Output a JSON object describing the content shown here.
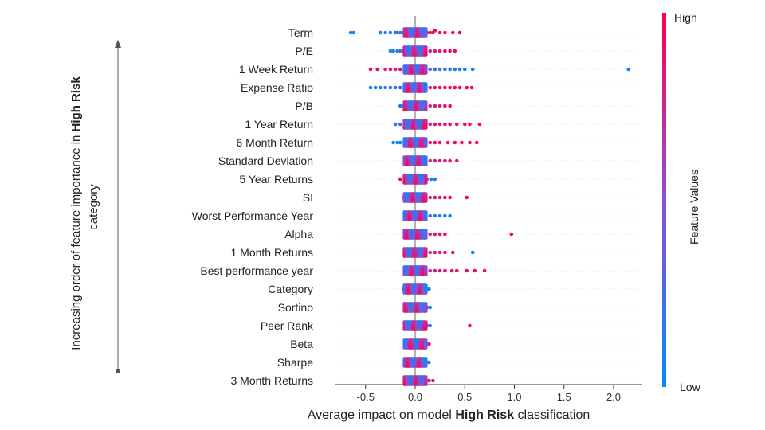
{
  "chart_data": {
    "type": "scatter",
    "subtype": "shap-beeswarm",
    "title": "",
    "xlabel_prefix": "Average impact on model ",
    "xlabel_bold": "High Risk",
    "xlabel_suffix": " classification",
    "ylabel_line1_prefix": "Increasing order of feature importance in ",
    "ylabel_line1_bold": "High Risk",
    "ylabel_line2": "category",
    "xlim": [
      -0.78,
      2.28
    ],
    "xticks": [
      -0.5,
      0.0,
      0.5,
      1.0,
      1.5,
      2.0
    ],
    "xtick_labels": [
      "-0.5",
      "0.0",
      "0.5",
      "1.0",
      "1.5",
      "2.0"
    ],
    "colorbar": {
      "title": "Feature Values",
      "high_label": "High",
      "low_label": "Low",
      "high_color": "#ff0052",
      "mid_color": "#8e4fd4",
      "low_color": "#008bfb"
    },
    "grid": false,
    "features": [
      {
        "name": "Term",
        "points": [
          [
            -0.65,
            0.08
          ],
          [
            -0.62,
            0.08
          ],
          [
            -0.35,
            0.1
          ],
          [
            -0.3,
            0.15
          ],
          [
            -0.25,
            0.15
          ],
          [
            -0.2,
            0.18
          ],
          [
            -0.18,
            0.2
          ],
          [
            -0.15,
            0.2
          ],
          [
            -0.12,
            0.22
          ],
          [
            -0.1,
            0.25
          ],
          [
            -0.08,
            0.3
          ],
          [
            -0.05,
            0.4
          ],
          [
            -0.03,
            0.45
          ],
          [
            0.0,
            0.5
          ],
          [
            0.02,
            0.6
          ],
          [
            0.05,
            0.7
          ],
          [
            0.08,
            0.75
          ],
          [
            0.1,
            0.8
          ],
          [
            0.12,
            0.85
          ],
          [
            0.15,
            0.9
          ],
          [
            0.18,
            0.92
          ],
          [
            0.2,
            0.95
          ],
          [
            0.25,
            0.95
          ],
          [
            0.3,
            0.9
          ],
          [
            0.38,
            0.95
          ],
          [
            0.45,
            0.95
          ]
        ]
      },
      {
        "name": "P/E",
        "points": [
          [
            -0.25,
            0.05
          ],
          [
            -0.22,
            0.1
          ],
          [
            -0.18,
            0.15
          ],
          [
            -0.15,
            0.2
          ],
          [
            -0.12,
            0.25
          ],
          [
            -0.1,
            0.3
          ],
          [
            -0.08,
            0.35
          ],
          [
            -0.05,
            0.4
          ],
          [
            0.0,
            0.55
          ],
          [
            0.05,
            0.65
          ],
          [
            0.1,
            0.75
          ],
          [
            0.15,
            0.8
          ],
          [
            0.2,
            0.85
          ],
          [
            0.25,
            0.9
          ],
          [
            0.3,
            0.92
          ],
          [
            0.35,
            0.95
          ],
          [
            0.4,
            0.95
          ]
        ]
      },
      {
        "name": "1 Week Return",
        "points": [
          [
            -0.45,
            0.95
          ],
          [
            -0.38,
            0.9
          ],
          [
            -0.3,
            0.88
          ],
          [
            -0.25,
            0.85
          ],
          [
            -0.2,
            0.82
          ],
          [
            -0.15,
            0.8
          ],
          [
            -0.1,
            0.75
          ],
          [
            -0.05,
            0.7
          ],
          [
            0.0,
            0.5
          ],
          [
            0.05,
            0.35
          ],
          [
            0.1,
            0.3
          ],
          [
            0.15,
            0.28
          ],
          [
            0.2,
            0.25
          ],
          [
            0.25,
            0.2
          ],
          [
            0.3,
            0.15
          ],
          [
            0.35,
            0.12
          ],
          [
            0.4,
            0.1
          ],
          [
            0.45,
            0.1
          ],
          [
            0.5,
            0.08
          ],
          [
            0.58,
            0.05
          ],
          [
            2.15,
            0.05
          ]
        ]
      },
      {
        "name": "Expense Ratio",
        "points": [
          [
            -0.45,
            0.05
          ],
          [
            -0.4,
            0.05
          ],
          [
            -0.35,
            0.08
          ],
          [
            -0.3,
            0.1
          ],
          [
            -0.25,
            0.12
          ],
          [
            -0.2,
            0.15
          ],
          [
            -0.15,
            0.2
          ],
          [
            -0.1,
            0.25
          ],
          [
            -0.05,
            0.35
          ],
          [
            0.0,
            0.5
          ],
          [
            0.05,
            0.7
          ],
          [
            0.1,
            0.8
          ],
          [
            0.15,
            0.85
          ],
          [
            0.2,
            0.88
          ],
          [
            0.25,
            0.9
          ],
          [
            0.3,
            0.92
          ],
          [
            0.35,
            0.95
          ],
          [
            0.4,
            0.95
          ],
          [
            0.45,
            0.95
          ],
          [
            0.52,
            0.95
          ],
          [
            0.57,
            0.95
          ]
        ]
      },
      {
        "name": "P/B",
        "points": [
          [
            -0.15,
            0.05
          ],
          [
            -0.12,
            0.1
          ],
          [
            -0.1,
            0.12
          ],
          [
            -0.08,
            0.15
          ],
          [
            -0.05,
            0.2
          ],
          [
            -0.02,
            0.3
          ],
          [
            0.0,
            0.45
          ],
          [
            0.03,
            0.6
          ],
          [
            0.06,
            0.7
          ],
          [
            0.1,
            0.75
          ],
          [
            0.15,
            0.8
          ],
          [
            0.2,
            0.82
          ],
          [
            0.25,
            0.85
          ],
          [
            0.3,
            0.88
          ],
          [
            0.35,
            0.9
          ]
        ]
      },
      {
        "name": "1 Year Return",
        "points": [
          [
            -0.2,
            0.1
          ],
          [
            -0.15,
            0.15
          ],
          [
            -0.1,
            0.2
          ],
          [
            -0.05,
            0.3
          ],
          [
            0.0,
            0.5
          ],
          [
            0.05,
            0.65
          ],
          [
            0.1,
            0.75
          ],
          [
            0.15,
            0.8
          ],
          [
            0.2,
            0.85
          ],
          [
            0.25,
            0.88
          ],
          [
            0.3,
            0.9
          ],
          [
            0.35,
            0.92
          ],
          [
            0.42,
            0.95
          ],
          [
            0.5,
            0.95
          ],
          [
            0.55,
            0.95
          ],
          [
            0.65,
            0.95
          ]
        ]
      },
      {
        "name": "6 Month Return",
        "points": [
          [
            -0.22,
            0.05
          ],
          [
            -0.18,
            0.1
          ],
          [
            -0.15,
            0.12
          ],
          [
            -0.1,
            0.15
          ],
          [
            -0.05,
            0.25
          ],
          [
            0.0,
            0.5
          ],
          [
            0.05,
            0.7
          ],
          [
            0.1,
            0.8
          ],
          [
            0.15,
            0.85
          ],
          [
            0.2,
            0.88
          ],
          [
            0.25,
            0.9
          ],
          [
            0.33,
            0.92
          ],
          [
            0.4,
            0.95
          ],
          [
            0.47,
            0.95
          ],
          [
            0.55,
            0.95
          ],
          [
            0.62,
            0.95
          ]
        ]
      },
      {
        "name": "Standard Deviation",
        "points": [
          [
            -0.08,
            0.1
          ],
          [
            -0.05,
            0.15
          ],
          [
            -0.03,
            0.2
          ],
          [
            0.0,
            0.4
          ],
          [
            0.05,
            0.6
          ],
          [
            0.1,
            0.7
          ],
          [
            0.15,
            0.75
          ],
          [
            0.2,
            0.8
          ],
          [
            0.25,
            0.85
          ],
          [
            0.3,
            0.88
          ],
          [
            0.35,
            0.9
          ],
          [
            0.42,
            0.92
          ]
        ]
      },
      {
        "name": "5 Year Returns",
        "points": [
          [
            -0.15,
            0.95
          ],
          [
            -0.1,
            0.9
          ],
          [
            -0.08,
            0.88
          ],
          [
            -0.05,
            0.85
          ],
          [
            -0.02,
            0.8
          ],
          [
            0.0,
            0.6
          ],
          [
            0.02,
            0.4
          ],
          [
            0.05,
            0.3
          ],
          [
            0.08,
            0.2
          ],
          [
            0.12,
            0.15
          ],
          [
            0.16,
            0.1
          ],
          [
            0.2,
            0.08
          ]
        ]
      },
      {
        "name": "SI",
        "points": [
          [
            -0.12,
            0.2
          ],
          [
            -0.08,
            0.25
          ],
          [
            -0.05,
            0.3
          ],
          [
            -0.02,
            0.35
          ],
          [
            0.0,
            0.45
          ],
          [
            0.05,
            0.65
          ],
          [
            0.1,
            0.75
          ],
          [
            0.15,
            0.8
          ],
          [
            0.2,
            0.85
          ],
          [
            0.25,
            0.88
          ],
          [
            0.3,
            0.9
          ],
          [
            0.35,
            0.92
          ],
          [
            0.52,
            0.95
          ]
        ]
      },
      {
        "name": "Worst Performance Year",
        "points": [
          [
            -0.08,
            0.95
          ],
          [
            -0.05,
            0.9
          ],
          [
            -0.02,
            0.85
          ],
          [
            0.0,
            0.6
          ],
          [
            0.03,
            0.4
          ],
          [
            0.06,
            0.3
          ],
          [
            0.1,
            0.2
          ],
          [
            0.15,
            0.15
          ],
          [
            0.2,
            0.12
          ],
          [
            0.25,
            0.1
          ],
          [
            0.3,
            0.08
          ],
          [
            0.35,
            0.05
          ]
        ]
      },
      {
        "name": "Alpha",
        "points": [
          [
            -0.1,
            0.3
          ],
          [
            -0.07,
            0.35
          ],
          [
            -0.04,
            0.4
          ],
          [
            0.0,
            0.5
          ],
          [
            0.05,
            0.65
          ],
          [
            0.1,
            0.75
          ],
          [
            0.15,
            0.8
          ],
          [
            0.2,
            0.85
          ],
          [
            0.25,
            0.88
          ],
          [
            0.3,
            0.9
          ],
          [
            0.97,
            0.95
          ]
        ]
      },
      {
        "name": "1 Month Returns",
        "points": [
          [
            -0.1,
            0.2
          ],
          [
            -0.07,
            0.25
          ],
          [
            -0.04,
            0.3
          ],
          [
            0.0,
            0.45
          ],
          [
            0.05,
            0.6
          ],
          [
            0.1,
            0.7
          ],
          [
            0.15,
            0.75
          ],
          [
            0.2,
            0.8
          ],
          [
            0.25,
            0.85
          ],
          [
            0.3,
            0.88
          ],
          [
            0.38,
            0.92
          ],
          [
            0.58,
            0.1
          ]
        ]
      },
      {
        "name": "Best performance year",
        "points": [
          [
            -0.08,
            0.1
          ],
          [
            -0.04,
            0.2
          ],
          [
            0.0,
            0.4
          ],
          [
            0.05,
            0.6
          ],
          [
            0.1,
            0.7
          ],
          [
            0.15,
            0.75
          ],
          [
            0.2,
            0.8
          ],
          [
            0.25,
            0.85
          ],
          [
            0.3,
            0.88
          ],
          [
            0.37,
            0.9
          ],
          [
            0.42,
            0.92
          ],
          [
            0.52,
            0.95
          ],
          [
            0.6,
            0.95
          ],
          [
            0.7,
            0.95
          ]
        ]
      },
      {
        "name": "Category",
        "points": [
          [
            -0.12,
            0.85
          ],
          [
            -0.08,
            0.8
          ],
          [
            -0.05,
            0.75
          ],
          [
            -0.02,
            0.7
          ],
          [
            0.0,
            0.6
          ],
          [
            0.03,
            0.45
          ],
          [
            0.06,
            0.3
          ],
          [
            0.09,
            0.2
          ],
          [
            0.12,
            0.15
          ],
          [
            0.14,
            0.1
          ]
        ]
      },
      {
        "name": "Sortino",
        "points": [
          [
            -0.08,
            0.9
          ],
          [
            -0.05,
            0.85
          ],
          [
            -0.02,
            0.8
          ],
          [
            0.0,
            0.6
          ],
          [
            0.03,
            0.4
          ],
          [
            0.06,
            0.25
          ],
          [
            0.09,
            0.15
          ],
          [
            0.12,
            0.1
          ],
          [
            0.15,
            0.08
          ]
        ]
      },
      {
        "name": "Peer Rank",
        "points": [
          [
            -0.1,
            0.85
          ],
          [
            -0.06,
            0.8
          ],
          [
            -0.03,
            0.75
          ],
          [
            0.0,
            0.6
          ],
          [
            0.03,
            0.4
          ],
          [
            0.06,
            0.25
          ],
          [
            0.09,
            0.15
          ],
          [
            0.12,
            0.1
          ],
          [
            0.15,
            0.08
          ],
          [
            0.55,
            0.95
          ]
        ]
      },
      {
        "name": "Beta",
        "points": [
          [
            -0.08,
            0.15
          ],
          [
            -0.05,
            0.2
          ],
          [
            -0.02,
            0.3
          ],
          [
            0.0,
            0.45
          ],
          [
            0.03,
            0.6
          ],
          [
            0.06,
            0.75
          ],
          [
            0.1,
            0.8
          ],
          [
            0.14,
            0.85
          ]
        ]
      },
      {
        "name": "Sharpe",
        "points": [
          [
            -0.1,
            0.85
          ],
          [
            -0.06,
            0.8
          ],
          [
            -0.03,
            0.75
          ],
          [
            0.0,
            0.6
          ],
          [
            0.03,
            0.4
          ],
          [
            0.06,
            0.25
          ],
          [
            0.1,
            0.15
          ],
          [
            0.14,
            0.1
          ]
        ]
      },
      {
        "name": "3 Month Returns",
        "points": [
          [
            -0.1,
            0.1
          ],
          [
            -0.06,
            0.15
          ],
          [
            -0.03,
            0.25
          ],
          [
            0.0,
            0.45
          ],
          [
            0.03,
            0.65
          ],
          [
            0.06,
            0.75
          ],
          [
            0.1,
            0.8
          ],
          [
            0.14,
            0.85
          ],
          [
            0.18,
            0.9
          ]
        ]
      }
    ]
  }
}
